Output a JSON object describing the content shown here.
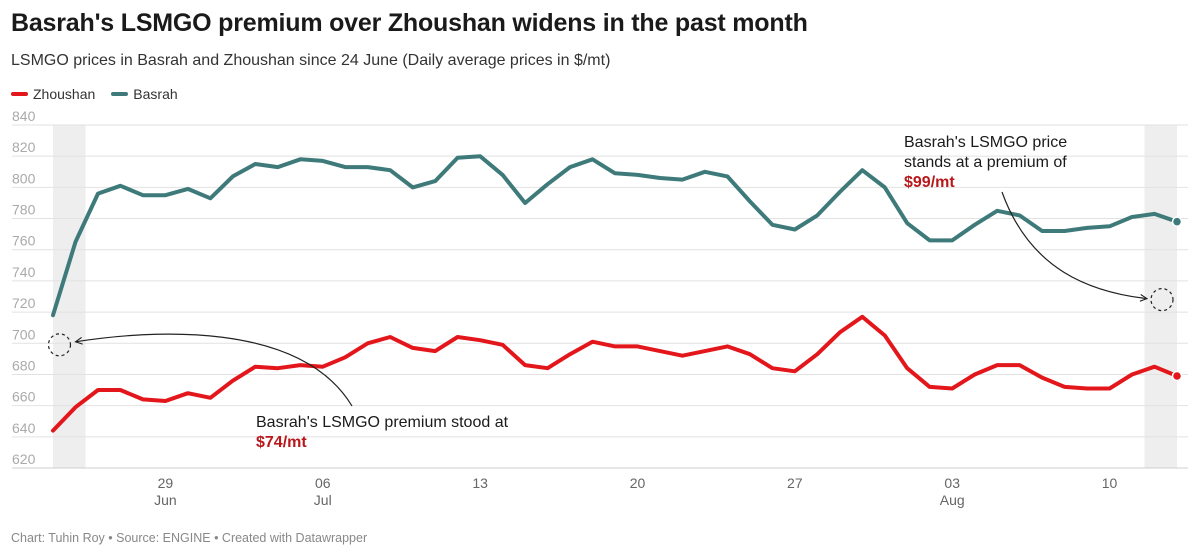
{
  "title": "Basrah's LSMGO premium over Zhoushan widens in the past month",
  "subtitle": "LSMGO prices in Basrah and Zhoushan since 24 June (Daily average prices in $/mt)",
  "footer": "Chart: Tuhin Roy • Source: ENGINE • Created with Datawrapper",
  "colors": {
    "zhoushan": "#e3171b",
    "basrah": "#3e7a7a",
    "highlight": "#eeeeee",
    "grid": "#e2e2e2"
  },
  "chart_data": {
    "type": "line",
    "title": "Basrah's LSMGO premium over Zhoushan widens in the past month",
    "subtitle": "LSMGO prices in Basrah and Zhoushan since 24 June (Daily average prices in $/mt)",
    "legend": "top-left",
    "grid": true,
    "ylim": [
      620,
      840
    ],
    "yticks": [
      620,
      640,
      660,
      680,
      700,
      720,
      740,
      760,
      780,
      800,
      820,
      840
    ],
    "xrange": [
      "2024-06-24",
      "2024-08-13"
    ],
    "xticks": [
      {
        "date": "2024-06-29",
        "day": "29",
        "month": "Jun"
      },
      {
        "date": "2024-07-06",
        "day": "06",
        "month": "Jul"
      },
      {
        "date": "2024-07-13",
        "day": "13",
        "month": ""
      },
      {
        "date": "2024-07-20",
        "day": "20",
        "month": ""
      },
      {
        "date": "2024-07-27",
        "day": "27",
        "month": ""
      },
      {
        "date": "2024-08-03",
        "day": "03",
        "month": "Aug"
      },
      {
        "date": "2024-08-10",
        "day": "10",
        "month": ""
      }
    ],
    "highlight_ranges": [
      [
        "2024-06-24",
        "2024-06-25"
      ],
      [
        "2024-08-12",
        "2024-08-13"
      ]
    ],
    "series": [
      {
        "name": "Zhoushan",
        "key": "zhoushan",
        "points": [
          [
            "2024-06-24",
            644
          ],
          [
            "2024-06-25",
            659
          ],
          [
            "2024-06-26",
            670
          ],
          [
            "2024-06-27",
            670
          ],
          [
            "2024-06-28",
            664
          ],
          [
            "2024-06-29",
            663
          ],
          [
            "2024-06-30",
            668
          ],
          [
            "2024-07-01",
            665
          ],
          [
            "2024-07-02",
            676
          ],
          [
            "2024-07-03",
            685
          ],
          [
            "2024-07-04",
            684
          ],
          [
            "2024-07-05",
            686
          ],
          [
            "2024-07-06",
            685
          ],
          [
            "2024-07-07",
            691
          ],
          [
            "2024-07-08",
            700
          ],
          [
            "2024-07-09",
            704
          ],
          [
            "2024-07-10",
            697
          ],
          [
            "2024-07-11",
            695
          ],
          [
            "2024-07-12",
            704
          ],
          [
            "2024-07-13",
            702
          ],
          [
            "2024-07-14",
            699
          ],
          [
            "2024-07-15",
            686
          ],
          [
            "2024-07-16",
            684
          ],
          [
            "2024-07-17",
            693
          ],
          [
            "2024-07-18",
            701
          ],
          [
            "2024-07-19",
            698
          ],
          [
            "2024-07-20",
            698
          ],
          [
            "2024-07-21",
            695
          ],
          [
            "2024-07-22",
            692
          ],
          [
            "2024-07-23",
            695
          ],
          [
            "2024-07-24",
            698
          ],
          [
            "2024-07-25",
            693
          ],
          [
            "2024-07-26",
            684
          ],
          [
            "2024-07-27",
            682
          ],
          [
            "2024-07-28",
            693
          ],
          [
            "2024-07-29",
            707
          ],
          [
            "2024-07-30",
            717
          ],
          [
            "2024-07-31",
            705
          ],
          [
            "2024-08-01",
            684
          ],
          [
            "2024-08-02",
            672
          ],
          [
            "2024-08-03",
            671
          ],
          [
            "2024-08-04",
            680
          ],
          [
            "2024-08-05",
            686
          ],
          [
            "2024-08-06",
            686
          ],
          [
            "2024-08-07",
            678
          ],
          [
            "2024-08-08",
            672
          ],
          [
            "2024-08-09",
            671
          ],
          [
            "2024-08-10",
            671
          ],
          [
            "2024-08-11",
            680
          ],
          [
            "2024-08-12",
            685
          ],
          [
            "2024-08-13",
            679
          ]
        ]
      },
      {
        "name": "Basrah",
        "key": "basrah",
        "points": [
          [
            "2024-06-24",
            718
          ],
          [
            "2024-06-25",
            765
          ],
          [
            "2024-06-26",
            796
          ],
          [
            "2024-06-27",
            801
          ],
          [
            "2024-06-28",
            795
          ],
          [
            "2024-06-29",
            795
          ],
          [
            "2024-06-30",
            799
          ],
          [
            "2024-07-01",
            793
          ],
          [
            "2024-07-02",
            807
          ],
          [
            "2024-07-03",
            815
          ],
          [
            "2024-07-04",
            813
          ],
          [
            "2024-07-05",
            818
          ],
          [
            "2024-07-06",
            817
          ],
          [
            "2024-07-07",
            813
          ],
          [
            "2024-07-08",
            813
          ],
          [
            "2024-07-09",
            811
          ],
          [
            "2024-07-10",
            800
          ],
          [
            "2024-07-11",
            804
          ],
          [
            "2024-07-12",
            819
          ],
          [
            "2024-07-13",
            820
          ],
          [
            "2024-07-14",
            808
          ],
          [
            "2024-07-15",
            790
          ],
          [
            "2024-07-16",
            802
          ],
          [
            "2024-07-17",
            813
          ],
          [
            "2024-07-18",
            818
          ],
          [
            "2024-07-19",
            809
          ],
          [
            "2024-07-20",
            808
          ],
          [
            "2024-07-21",
            806
          ],
          [
            "2024-07-22",
            805
          ],
          [
            "2024-07-23",
            810
          ],
          [
            "2024-07-24",
            807
          ],
          [
            "2024-07-25",
            791
          ],
          [
            "2024-07-26",
            776
          ],
          [
            "2024-07-27",
            773
          ],
          [
            "2024-07-28",
            782
          ],
          [
            "2024-07-29",
            797
          ],
          [
            "2024-07-30",
            811
          ],
          [
            "2024-07-31",
            800
          ],
          [
            "2024-08-01",
            777
          ],
          [
            "2024-08-02",
            766
          ],
          [
            "2024-08-03",
            766
          ],
          [
            "2024-08-04",
            776
          ],
          [
            "2024-08-05",
            785
          ],
          [
            "2024-08-06",
            782
          ],
          [
            "2024-08-07",
            772
          ],
          [
            "2024-08-08",
            772
          ],
          [
            "2024-08-09",
            774
          ],
          [
            "2024-08-10",
            775
          ],
          [
            "2024-08-11",
            781
          ],
          [
            "2024-08-12",
            783
          ],
          [
            "2024-08-13",
            778
          ]
        ]
      }
    ],
    "annotations": [
      {
        "id": "start",
        "lines": [
          "Basrah's LSMGO premium stood at"
        ],
        "value": "$74/mt",
        "value_color": "#b8181b",
        "target": [
          "2024-06-25",
          699
        ]
      },
      {
        "id": "end",
        "lines": [
          "Basrah's LSMGO price",
          "stands at a premium of"
        ],
        "value": "$99/mt",
        "value_color": "#b8181b",
        "target": [
          "2024-08-13",
          728
        ]
      }
    ]
  }
}
